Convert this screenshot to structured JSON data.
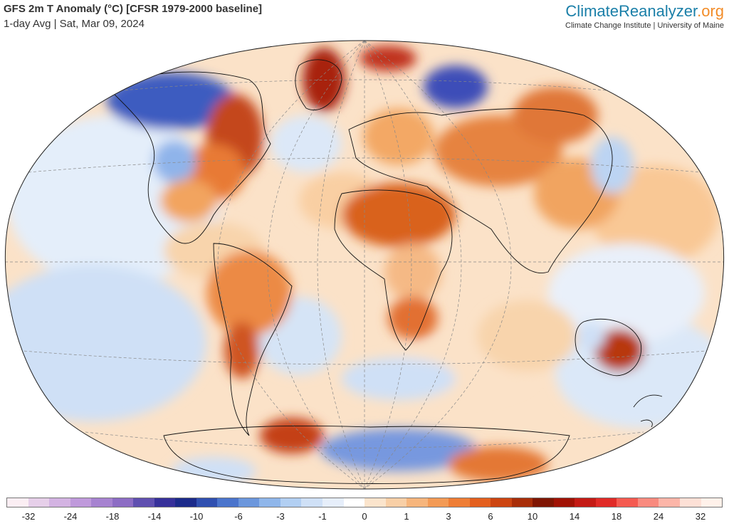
{
  "header": {
    "title": "GFS 2m T Anomaly (°C) [CFSR 1979-2000 baseline]",
    "subtitle": "1-day Avg | Sat, Mar 09, 2024"
  },
  "brand": {
    "logo_part1": "Climate",
    "logo_part2": "Reanalyzer",
    "logo_part3": ".org",
    "tagline": "Climate Change Institute | University of Maine",
    "colors": {
      "primary": "#1a7fa8",
      "accent": "#f28c28"
    }
  },
  "map": {
    "projection": "Winkel Tripel",
    "graticule": true,
    "variable": "2m temperature anomaly"
  },
  "scale": {
    "labels": [
      "-32",
      "-24",
      "-18",
      "-14",
      "-10",
      "-6",
      "-3",
      "-1",
      "0",
      "1",
      "3",
      "6",
      "10",
      "14",
      "18",
      "24",
      "32"
    ],
    "colors": [
      "#fbeef3",
      "#e6cfe9",
      "#d3b3e2",
      "#bf99db",
      "#a682d0",
      "#8c6cc4",
      "#5f4fb0",
      "#36309a",
      "#1b2a8a",
      "#2f4fb0",
      "#4a74cc",
      "#6b96dc",
      "#8fb6ea",
      "#b2cff2",
      "#cfe0f6",
      "#e6eefa",
      "#ffffff",
      "#fbe4cc",
      "#f8cfa6",
      "#f6b57c",
      "#f39a55",
      "#ee7d35",
      "#e35f1e",
      "#cc4410",
      "#a82d08",
      "#7f1503",
      "#a01205",
      "#c41a14",
      "#e02a26",
      "#f45a50",
      "#f98a7e",
      "#fcb5a8",
      "#fde0d6",
      "#fff1ea"
    ]
  }
}
